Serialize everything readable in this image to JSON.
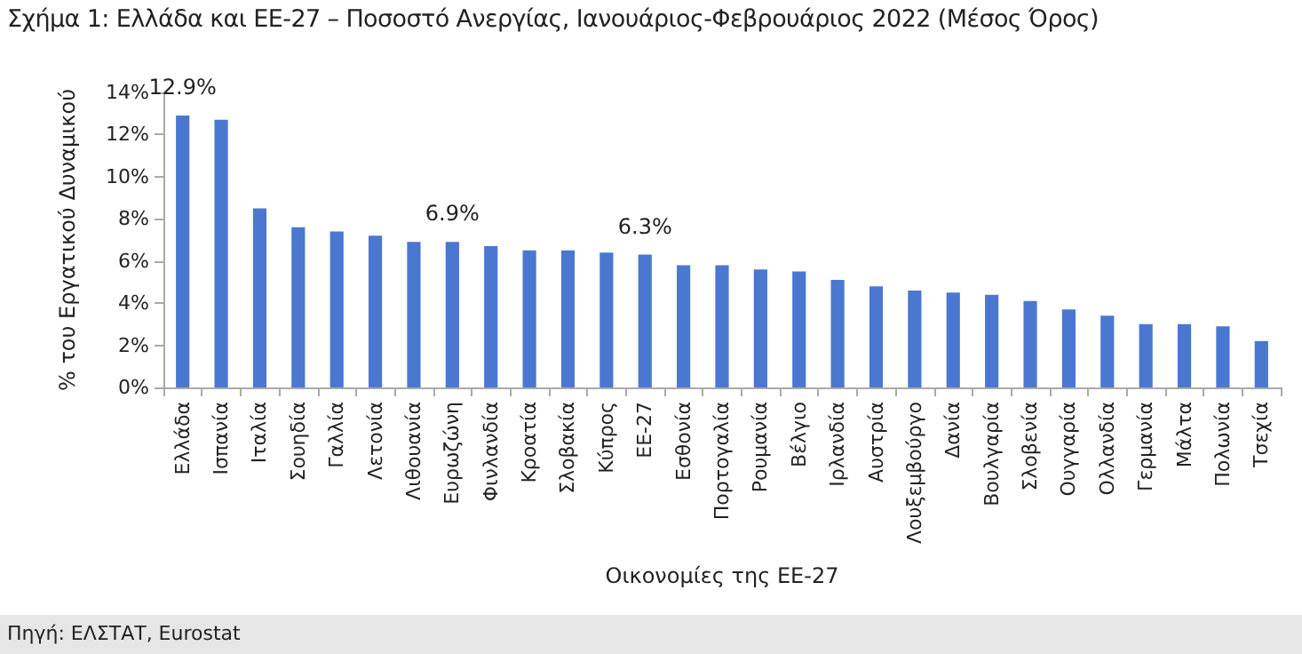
{
  "chart_data": {
    "type": "bar",
    "title": "Σχήμα 1: Ελλάδα και ΕΕ-27 – Ποσοστό Ανεργίας, Ιανουάριος-Φεβρουάριος 2022 (Μέσος Όρος)",
    "xlabel": "Οικονομίες της ΕΕ-27",
    "ylabel": "% του Εργατικού Δυναμικού",
    "categories": [
      "Ελλάδα",
      "Ισπανία",
      "Ιταλία",
      "Σουηδία",
      "Γαλλία",
      "Λετονία",
      "Λιθουανία",
      "Ευρωζώνη",
      "Φινλανδία",
      "Κροατία",
      "Σλοβακία",
      "Κύπρος",
      "ΕΕ-27",
      "Εσθονία",
      "Πορτογαλία",
      "Ρουμανία",
      "Βέλγιο",
      "Ιρλανδία",
      "Αυστρία",
      "Λουξεμβούργο",
      "Δανία",
      "Βουλγαρία",
      "Σλοβενία",
      "Ουγγαρία",
      "Ολλανδία",
      "Γερμανία",
      "Μάλτα",
      "Πολωνία",
      "Τσεχία"
    ],
    "values": [
      12.9,
      12.7,
      8.5,
      7.6,
      7.4,
      7.2,
      6.9,
      6.9,
      6.7,
      6.5,
      6.5,
      6.4,
      6.3,
      5.8,
      5.8,
      5.6,
      5.5,
      5.1,
      4.8,
      4.6,
      4.5,
      4.4,
      4.1,
      3.7,
      3.4,
      3.0,
      3.0,
      2.9,
      2.2
    ],
    "value_labels": [
      "12.9%",
      null,
      null,
      null,
      null,
      null,
      null,
      "6.9%",
      null,
      null,
      null,
      null,
      "6.3%",
      null,
      null,
      null,
      null,
      null,
      null,
      null,
      null,
      null,
      null,
      null,
      null,
      null,
      null,
      null,
      null
    ],
    "color": "#4a78d0",
    "ylim": [
      0,
      14
    ],
    "yticks": [
      {
        "value": 0,
        "label": "0%"
      },
      {
        "value": 2,
        "label": "2%"
      },
      {
        "value": 4,
        "label": "4%"
      },
      {
        "value": 6,
        "label": "6%"
      },
      {
        "value": 8,
        "label": "8%"
      },
      {
        "value": 10,
        "label": "10%"
      },
      {
        "value": 12,
        "label": "12%"
      },
      {
        "value": 14,
        "label": "14%"
      }
    ],
    "grid": false,
    "annotations": [
      "Πηγή: ΕΛΣΤΑΤ, Eurostat"
    ]
  }
}
